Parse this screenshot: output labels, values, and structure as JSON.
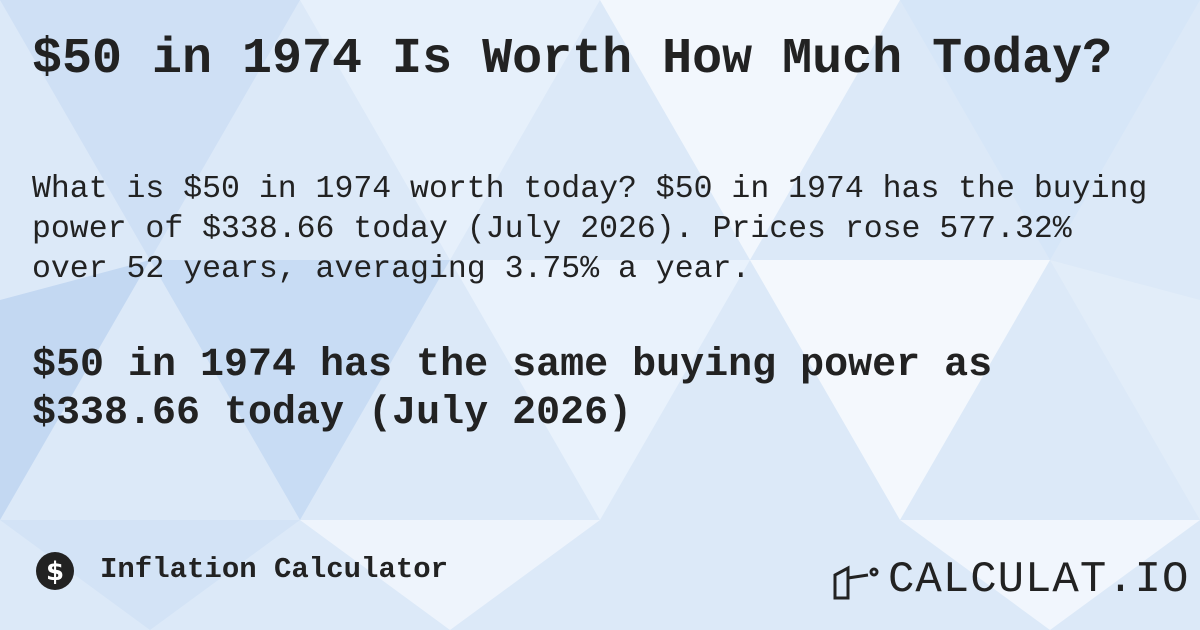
{
  "header": {
    "title": "$50 in 1974 Is Worth How Much Today?"
  },
  "summary": {
    "lines": [
      "What is $50 in 1974 worth today? $50 in 1974 has the buying",
      "power of $338.66 today (July 2026). Prices rose 577.32%",
      "over 52 years, averaging 3.75% a year."
    ]
  },
  "highlight": {
    "lines": [
      "$50 in 1974 has the same buying power as",
      "$338.66 today (July 2026)"
    ]
  },
  "footer": {
    "label": "Inflation Calculator",
    "brand": "CALCULAT.IO"
  }
}
